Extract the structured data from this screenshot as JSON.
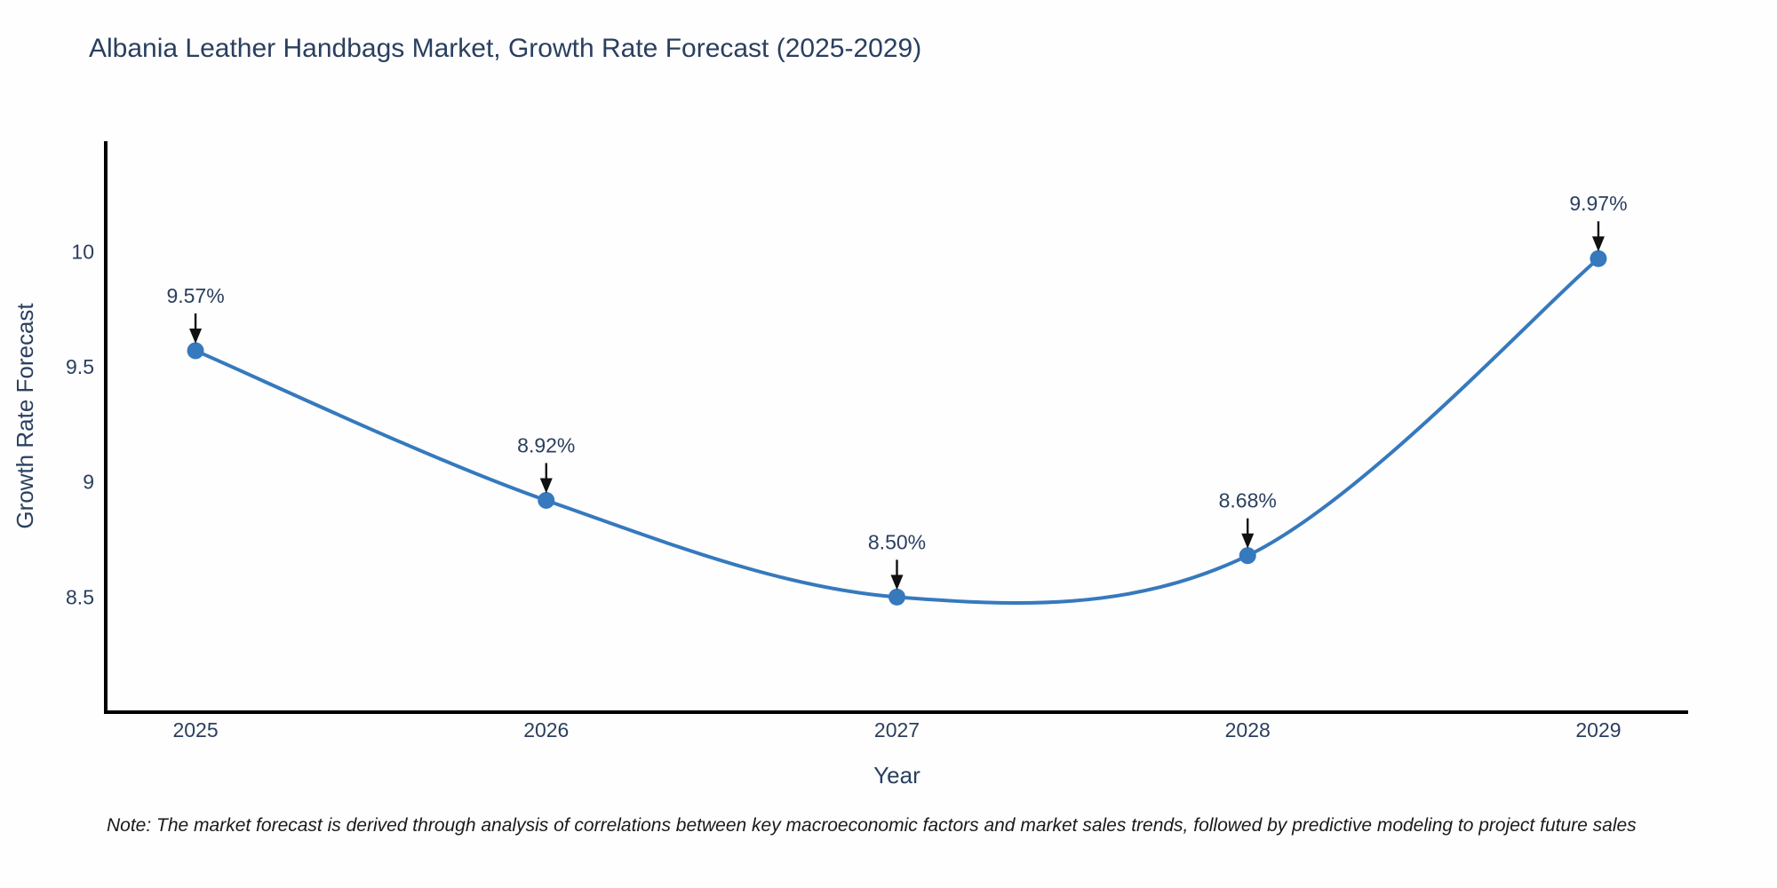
{
  "chart_data": {
    "type": "line",
    "title": "Albania Leather Handbags Market, Growth Rate Forecast (2025-2029)",
    "xlabel": "Year",
    "ylabel": "Growth Rate Forecast",
    "categories": [
      "2025",
      "2026",
      "2027",
      "2028",
      "2029"
    ],
    "x": [
      2025,
      2026,
      2027,
      2028,
      2029
    ],
    "values": [
      9.57,
      8.92,
      8.5,
      8.68,
      9.97
    ],
    "point_labels": [
      "9.57%",
      "8.92%",
      "8.50%",
      "8.68%",
      "9.97%"
    ],
    "line_shape": "spline",
    "grid": false,
    "legend_position": "none",
    "xlim": [
      2024.744,
      2029.256
    ],
    "ylim": [
      8.0,
      10.48
    ],
    "yticks": [
      8.5,
      9.0,
      9.5,
      10.0
    ],
    "ytick_labels": [
      "8.5",
      "9",
      "9.5",
      "10"
    ],
    "colors": {
      "line": "#3679bd",
      "marker": "#3679bd",
      "axis_line": "#000000",
      "text": "#2a3f5f",
      "annotation_text": "#2a3f5f",
      "annotation_arrow": "#111111"
    }
  },
  "footer": {
    "note": "Note: The market forecast is derived through analysis of correlations between key macroeconomic factors and market sales trends, followed by predictive modeling to project future sales"
  }
}
